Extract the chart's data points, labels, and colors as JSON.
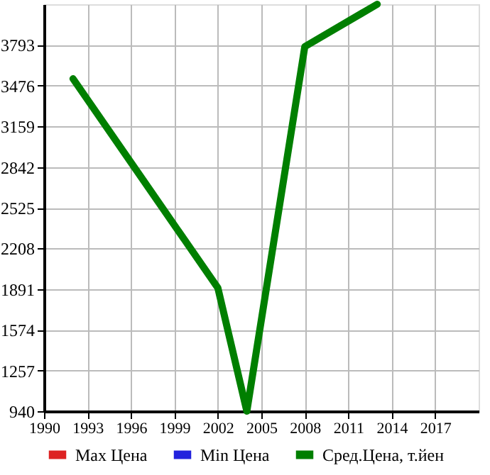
{
  "chart_data": {
    "type": "line",
    "x": [
      1992,
      2002,
      2004,
      2008,
      2013
    ],
    "series": [
      {
        "name": "Max Цена",
        "color": "#dd2222",
        "values": [
          null,
          null,
          null,
          null,
          null
        ]
      },
      {
        "name": "Min Цена",
        "color": "#2222dd",
        "values": [
          null,
          null,
          null,
          null,
          null
        ]
      },
      {
        "name": "Сред.Цена, т.йен",
        "color": "#007f00",
        "values": [
          3530,
          1900,
          940,
          3780,
          4110
        ]
      }
    ],
    "xlim": [
      1990,
      2020
    ],
    "xticks": [
      1990,
      1993,
      1996,
      1999,
      2002,
      2005,
      2008,
      2011,
      2014,
      2017
    ],
    "ylim": [
      940,
      4110
    ],
    "yticks": [
      940,
      1257,
      1574,
      1891,
      2208,
      2525,
      2842,
      3159,
      3476,
      3793
    ],
    "grid": true,
    "legend": "bottom",
    "line_style": "solid",
    "marker": "none"
  }
}
